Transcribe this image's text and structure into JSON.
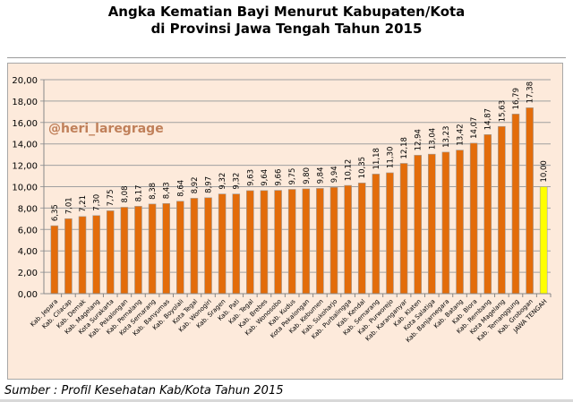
{
  "title": {
    "line1": "Angka Kematian Bayi Menurut Kabupaten/Kota",
    "line2": "di Provinsi Jawa Tengah Tahun 2015"
  },
  "watermark": "@heri_laregrage",
  "source": "Sumber : Profil Kesehatan Kab/Kota Tahun 2015",
  "colors": {
    "bar": "#e36c0a",
    "bar_highlight": "#ffff00",
    "plot_background": "#fdeadb",
    "gridline": "#a0a0a0",
    "watermark": "#c0805a"
  },
  "chart_data": {
    "type": "bar",
    "title": "Angka Kematian Bayi Menurut Kabupaten/Kota di Provinsi Jawa Tengah Tahun 2015",
    "xlabel": "",
    "ylabel": "",
    "ylim": [
      0,
      20
    ],
    "yticks": [
      "0,00",
      "2,00",
      "4,00",
      "6,00",
      "8,00",
      "10,00",
      "12,00",
      "14,00",
      "16,00",
      "18,00",
      "20,00"
    ],
    "grid": true,
    "legend": "none",
    "categories": [
      "Kab. Jepara",
      "Kab. Cilacap",
      "Kab. Demak",
      "Kab. Magelang",
      "Kota Surakarta",
      "Kab. Pekalongan",
      "Kab. Pemalang",
      "Kota Semarang",
      "Kab. Banyumas",
      "Kab. Boyolali",
      "Kota Tegal",
      "Kab. Wonogiri",
      "Kab. Sragen",
      "Kab. Pati",
      "Kab. Tegal",
      "Kab. Brebes",
      "Kab. Wonosobo",
      "Kab. Kudus",
      "Kota Pekalongan",
      "Kab. Kebumen",
      "Kab. Sukoharjo",
      "Kab. Purbalingga",
      "Kab. Kendal",
      "Kab. Semarang",
      "Kab. Purworejo",
      "Kab. Karanganyar",
      "Kab. Klaten",
      "Kota Salatiga",
      "Kab. Banjarnegara",
      "Kab. Batang",
      "Kab. Blora",
      "Kab. Rembang",
      "Kota Magelang",
      "Kab. Temanggung",
      "Kab. Grobogan",
      "JAWA TENGAH"
    ],
    "values": [
      6.35,
      7.01,
      7.21,
      7.3,
      7.75,
      8.08,
      8.17,
      8.38,
      8.43,
      8.64,
      8.92,
      8.97,
      9.32,
      9.32,
      9.63,
      9.64,
      9.66,
      9.75,
      9.8,
      9.84,
      9.94,
      10.12,
      10.35,
      11.18,
      11.3,
      12.18,
      12.94,
      13.04,
      13.23,
      13.42,
      14.07,
      14.87,
      15.63,
      16.79,
      17.38,
      10.0
    ],
    "value_labels": [
      "6,35",
      "7,01",
      "7,21",
      "7,30",
      "7,75",
      "8,08",
      "8,17",
      "8,38",
      "8,43",
      "8,64",
      "8,92",
      "8,97",
      "9,32",
      "9,32",
      "9,63",
      "9,64",
      "9,66",
      "9,75",
      "9,80",
      "9,84",
      "9,94",
      "10,12",
      "10,35",
      "11,18",
      "11,30",
      "12,18",
      "12,94",
      "13,04",
      "13,23",
      "13,42",
      "14,07",
      "14,87",
      "15,63",
      "16,79",
      "17,38",
      "10,00"
    ],
    "highlight_index": 35
  }
}
